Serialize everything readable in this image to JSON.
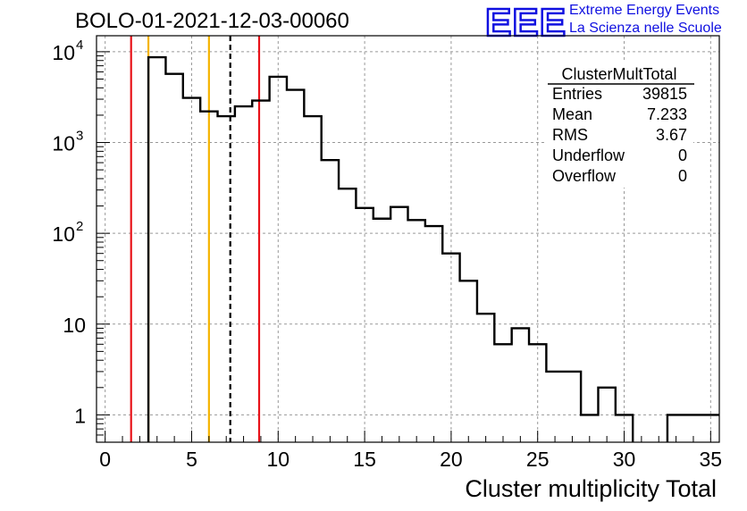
{
  "header": {
    "title": "BOLO-01-2021-12-03-00060",
    "logo_text": "EEE",
    "logo_line1": "Extreme Energy Events",
    "logo_line2": "La Scienza nelle Scuole",
    "brand_color": "#1010e0"
  },
  "stats_box": {
    "name": "ClusterMultTotal",
    "rows": [
      {
        "label": "Entries",
        "value": "39815"
      },
      {
        "label": "Mean",
        "value": "7.233"
      },
      {
        "label": "RMS",
        "value": "3.67"
      },
      {
        "label": "Underflow",
        "value": "0"
      },
      {
        "label": "Overflow",
        "value": "0"
      }
    ]
  },
  "chart_data": {
    "type": "bar",
    "title": "BOLO-01-2021-12-03-00060",
    "xlabel": "Cluster multiplicity Total",
    "ylabel": "",
    "xlim": [
      -0.5,
      35.5
    ],
    "ylim": [
      0.5,
      15000
    ],
    "log_y": true,
    "grid": true,
    "x_ticks": [
      "0",
      "5",
      "10",
      "15",
      "20",
      "25",
      "30",
      "35"
    ],
    "y_ticks": [
      {
        "value": 1,
        "base": "1",
        "exp": ""
      },
      {
        "value": 10,
        "base": "10",
        "exp": ""
      },
      {
        "value": 100,
        "base": "10",
        "exp": "2"
      },
      {
        "value": 1000,
        "base": "10",
        "exp": "3"
      },
      {
        "value": 10000,
        "base": "10",
        "exp": "4"
      }
    ],
    "bins": [
      {
        "lo": 2.5,
        "hi": 3.5,
        "count": 8700
      },
      {
        "lo": 3.5,
        "hi": 4.5,
        "count": 5700
      },
      {
        "lo": 4.5,
        "hi": 5.5,
        "count": 3100
      },
      {
        "lo": 5.5,
        "hi": 6.5,
        "count": 2200
      },
      {
        "lo": 6.5,
        "hi": 7.5,
        "count": 1950
      },
      {
        "lo": 7.5,
        "hi": 8.5,
        "count": 2500
      },
      {
        "lo": 8.5,
        "hi": 9.5,
        "count": 2900
      },
      {
        "lo": 9.5,
        "hi": 10.5,
        "count": 5300
      },
      {
        "lo": 10.5,
        "hi": 11.5,
        "count": 3800
      },
      {
        "lo": 11.5,
        "hi": 12.5,
        "count": 1950
      },
      {
        "lo": 12.5,
        "hi": 13.5,
        "count": 640
      },
      {
        "lo": 13.5,
        "hi": 14.5,
        "count": 310
      },
      {
        "lo": 14.5,
        "hi": 15.5,
        "count": 190
      },
      {
        "lo": 15.5,
        "hi": 16.5,
        "count": 145
      },
      {
        "lo": 16.5,
        "hi": 17.5,
        "count": 195
      },
      {
        "lo": 17.5,
        "hi": 18.5,
        "count": 140
      },
      {
        "lo": 18.5,
        "hi": 19.5,
        "count": 120
      },
      {
        "lo": 19.5,
        "hi": 20.5,
        "count": 60
      },
      {
        "lo": 20.5,
        "hi": 21.5,
        "count": 30
      },
      {
        "lo": 21.5,
        "hi": 22.5,
        "count": 13
      },
      {
        "lo": 22.5,
        "hi": 23.5,
        "count": 6
      },
      {
        "lo": 23.5,
        "hi": 24.5,
        "count": 9
      },
      {
        "lo": 24.5,
        "hi": 25.5,
        "count": 6
      },
      {
        "lo": 25.5,
        "hi": 26.5,
        "count": 3
      },
      {
        "lo": 26.5,
        "hi": 27.5,
        "count": 3
      },
      {
        "lo": 27.5,
        "hi": 28.5,
        "count": 1
      },
      {
        "lo": 28.5,
        "hi": 29.5,
        "count": 2
      },
      {
        "lo": 29.5,
        "hi": 30.5,
        "count": 1
      },
      {
        "lo": 32.5,
        "hi": 33.5,
        "count": 1
      },
      {
        "lo": 33.5,
        "hi": 34.5,
        "count": 1
      },
      {
        "lo": 34.5,
        "hi": 35.5,
        "count": 1
      }
    ],
    "markers": [
      {
        "x": 1.5,
        "color": "#e8131a",
        "style": "solid"
      },
      {
        "x": 2.5,
        "color": "#f5b400",
        "style": "solid"
      },
      {
        "x": 6.0,
        "color": "#f5b400",
        "style": "solid"
      },
      {
        "x": 7.233,
        "color": "#000000",
        "style": "dashed"
      },
      {
        "x": 8.9,
        "color": "#e8131a",
        "style": "solid"
      }
    ]
  }
}
